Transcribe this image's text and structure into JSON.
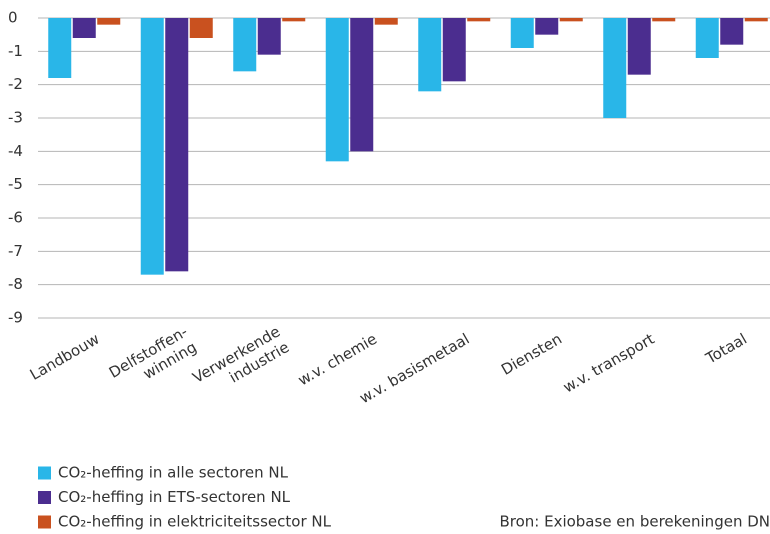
{
  "chart_data": {
    "type": "bar",
    "categories": [
      "Landbouw",
      "Delfstoffen-\nwinning",
      "Verwerkende\nindustrie",
      "w.v. chemie",
      "w.v. basismetaal",
      "Diensten",
      "w.v. transport",
      "Totaal"
    ],
    "series": [
      {
        "name": "CO₂-heffing in alle sectoren NL",
        "color": "#29b6e8",
        "values": [
          -1.8,
          -7.7,
          -1.6,
          -4.3,
          -2.2,
          -0.9,
          -3.0,
          -1.2
        ]
      },
      {
        "name": "CO₂-heffing in ETS-sectoren NL",
        "color": "#4b2d8f",
        "values": [
          -0.6,
          -7.6,
          -1.1,
          -4.0,
          -1.9,
          -0.5,
          -1.7,
          -0.8
        ]
      },
      {
        "name": "CO₂-heffing in elektriciteitssector NL",
        "color": "#c9511f",
        "values": [
          -0.2,
          -0.6,
          -0.1,
          -0.2,
          -0.1,
          -0.1,
          -0.1,
          -0.1
        ]
      }
    ],
    "ylim": [
      -9,
      0
    ],
    "yticks": [
      0,
      -1,
      -2,
      -3,
      -4,
      -5,
      -6,
      -7,
      -8,
      -9
    ],
    "grid": true,
    "source": "Bron: Exiobase en berekeningen DN"
  }
}
